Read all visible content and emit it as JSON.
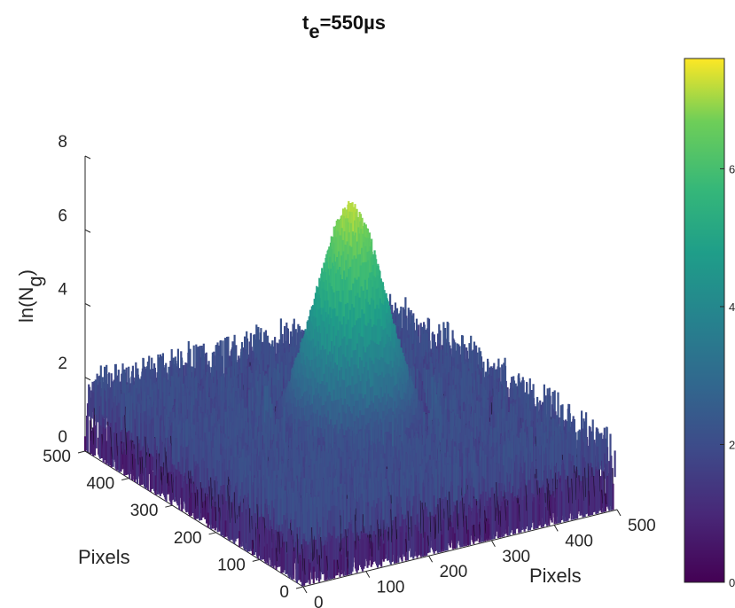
{
  "chart_data": {
    "type": "surface",
    "title": "t",
    "title_sub": "e",
    "title_rest": "=550µs",
    "zlabel": "ln(N",
    "zlabel_sub": "g",
    "zlabel_close": ")",
    "xlabel": "Pixels",
    "ylabel": "Pixels",
    "xlim": [
      0,
      500
    ],
    "ylim": [
      0,
      500
    ],
    "zlim": [
      0,
      8
    ],
    "x_ticks": [
      "0",
      "100",
      "200",
      "300",
      "400",
      "500"
    ],
    "y_ticks": [
      "0",
      "100",
      "200",
      "300",
      "400",
      "500"
    ],
    "z_ticks": [
      "0",
      "2",
      "4",
      "6",
      "8"
    ],
    "colormap": "viridis",
    "colorbar_ticks": [
      "0",
      "2",
      "4",
      "6"
    ],
    "peak": {
      "x": 250,
      "y": 250,
      "height": 7.4
    },
    "shoulder_height": 2.6,
    "background_height": 1.0,
    "grid": false,
    "colors": {
      "edge": "#000000",
      "low": "#440154",
      "high": "#fde725"
    }
  }
}
